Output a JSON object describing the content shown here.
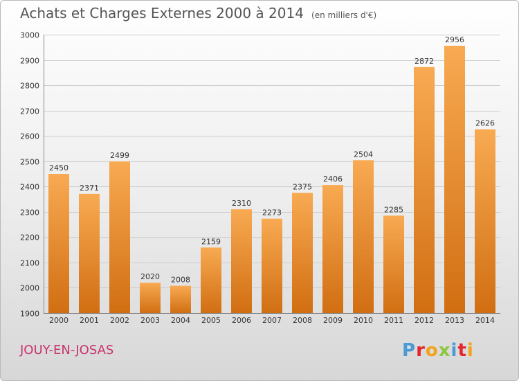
{
  "header": {
    "title": "Achats et Charges Externes 2000 à 2014",
    "unit": "(en milliers d'€)"
  },
  "footer": {
    "city": "JOUY-EN-JOSAS",
    "logo": "Proxiti"
  },
  "logo_colors": [
    "#4a9ad6",
    "#e4252e",
    "#f3a21b",
    "#8ec63f",
    "#4a9ad6",
    "#e4252e",
    "#f3a21b"
  ],
  "colors": {
    "bar_top": "#f8aa52",
    "bar_bottom": "#d16e12",
    "grid": "#cccccc",
    "axis_text": "#333333"
  },
  "chart_data": {
    "type": "bar",
    "title": "Achats et Charges Externes 2000 à 2014",
    "subtitle": "(en milliers d'€)",
    "categories": [
      "2000",
      "2001",
      "2002",
      "2003",
      "2004",
      "2005",
      "2006",
      "2007",
      "2008",
      "2009",
      "2010",
      "2011",
      "2012",
      "2013",
      "2014"
    ],
    "values": [
      2450,
      2371,
      2499,
      2020,
      2008,
      2159,
      2310,
      2273,
      2375,
      2406,
      2504,
      2285,
      2872,
      2956,
      2626
    ],
    "ylim": [
      1900,
      3000
    ],
    "yticks": [
      1900,
      2000,
      2100,
      2200,
      2300,
      2400,
      2500,
      2600,
      2700,
      2800,
      2900,
      3000
    ],
    "grid": true,
    "data_labels": true
  }
}
